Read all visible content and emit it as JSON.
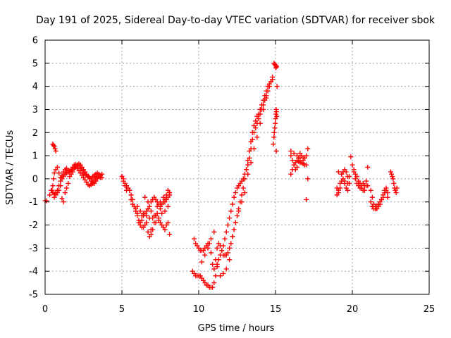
{
  "chart_data": {
    "type": "scatter",
    "title": "Day 191 of 2025, Sidereal Day-to-day VTEC variation (SDTVAR) for receiver sbok",
    "xlabel": "GPS time / hours",
    "ylabel": "SDTVAR / TECUs",
    "xlim": [
      0,
      25
    ],
    "ylim": [
      -5,
      6
    ],
    "xticks": [
      0,
      5,
      10,
      15,
      20,
      25
    ],
    "yticks": [
      -5,
      -4,
      -3,
      -2,
      -1,
      0,
      1,
      2,
      3,
      4,
      5,
      6
    ],
    "grid": true,
    "marker": "+",
    "color": "#ff0000",
    "series": [
      {
        "name": "sbok",
        "x": [
          0.0,
          0.1,
          0.3,
          0.4,
          0.5,
          0.55,
          0.6,
          0.7,
          0.8,
          0.9,
          1.0,
          1.1,
          1.2,
          1.3,
          1.4,
          1.5,
          1.6,
          1.7,
          1.8,
          1.9,
          2.0,
          2.1,
          2.2,
          2.3,
          2.4,
          2.5,
          2.6,
          2.7,
          2.8,
          2.9,
          3.0,
          3.1,
          3.2,
          3.3,
          3.4,
          3.5,
          3.6,
          3.7,
          0.5,
          0.55,
          0.6,
          0.65,
          0.7,
          0.45,
          0.5,
          0.6,
          0.7,
          0.8,
          0.9,
          1.0,
          1.1,
          1.2,
          1.3,
          1.4,
          1.5,
          1.6,
          1.7,
          1.8,
          1.9,
          2.0,
          2.1,
          2.2,
          2.3,
          2.4,
          2.5,
          2.6,
          2.7,
          2.8,
          2.9,
          3.0,
          3.1,
          3.2,
          3.3,
          3.4,
          3.5,
          3.6,
          3.7,
          1.0,
          0.9,
          0.8,
          0.7,
          0.6,
          1.1,
          1.2,
          1.3,
          1.4,
          1.5,
          1.6,
          1.7,
          1.8,
          1.9,
          2.0,
          2.1,
          2.2,
          2.3,
          2.4,
          2.5,
          2.6,
          2.7,
          2.8,
          2.9,
          3.0,
          3.1,
          3.2,
          3.3,
          3.4,
          3.5,
          3.6,
          5.0,
          5.1,
          5.2,
          5.3,
          5.4,
          5.5,
          5.6,
          5.7,
          5.8,
          5.9,
          6.0,
          6.1,
          6.2,
          6.3,
          6.4,
          6.5,
          6.6,
          6.7,
          6.8,
          6.9,
          7.0,
          7.1,
          7.2,
          7.3,
          7.4,
          7.5,
          7.6,
          7.7,
          7.8,
          7.9,
          8.0,
          8.1,
          5.0,
          5.1,
          5.2,
          5.3,
          5.4,
          5.5,
          5.6,
          5.7,
          5.8,
          5.9,
          6.0,
          6.1,
          6.2,
          6.3,
          6.4,
          6.5,
          6.6,
          6.7,
          6.8,
          6.9,
          7.0,
          7.1,
          7.2,
          7.3,
          7.4,
          7.5,
          7.6,
          7.7,
          7.8,
          7.9,
          8.0,
          8.1,
          6.0,
          6.2,
          6.4,
          6.6,
          6.8,
          7.0,
          7.2,
          7.4,
          7.6,
          7.8,
          8.0,
          6.5,
          6.7,
          6.9,
          7.1,
          7.3,
          7.5,
          7.7,
          7.9,
          8.1,
          6.3,
          6.6,
          6.9,
          7.2,
          7.5,
          7.8,
          8.0,
          8.1,
          9.6,
          9.7,
          9.8,
          9.9,
          10.0,
          10.1,
          10.2,
          10.3,
          10.4,
          10.5,
          10.6,
          10.7,
          10.8,
          10.9,
          11.0,
          11.1,
          11.2,
          11.3,
          11.4,
          11.5,
          11.6,
          11.7,
          11.8,
          11.9,
          12.0,
          12.1,
          12.2,
          12.3,
          12.4,
          12.5,
          12.6,
          12.7,
          12.8,
          12.9,
          13.0,
          13.1,
          13.2,
          13.3,
          13.4,
          13.5,
          13.6,
          13.7,
          13.8,
          13.9,
          14.0,
          14.1,
          14.2,
          14.3,
          14.4,
          14.5,
          14.6,
          14.7,
          14.8,
          9.7,
          9.8,
          9.9,
          10.0,
          10.1,
          10.2,
          10.3,
          10.4,
          10.5,
          10.6,
          10.7,
          10.8,
          10.9,
          11.0,
          11.1,
          11.2,
          11.3,
          11.4,
          11.5,
          11.6,
          11.7,
          11.8,
          11.9,
          12.0,
          12.1,
          12.2,
          12.3,
          12.4,
          12.5,
          12.6,
          12.7,
          12.8,
          12.9,
          13.0,
          13.1,
          13.2,
          13.3,
          13.4,
          13.5,
          13.6,
          13.7,
          13.8,
          13.9,
          14.0,
          14.1,
          14.2,
          14.3,
          14.4,
          14.5,
          14.6,
          14.7,
          14.8,
          10.2,
          10.4,
          10.6,
          10.8,
          11.0,
          11.2,
          11.4,
          11.6,
          11.8,
          12.0,
          12.2,
          12.4,
          12.6,
          12.8,
          13.0,
          13.2,
          13.4,
          13.6,
          13.8,
          14.0,
          14.2,
          14.4,
          14.6,
          14.9,
          14.95,
          15.0,
          15.02,
          15.04,
          15.06,
          14.85,
          14.9,
          14.92,
          14.95,
          14.98,
          15.0,
          15.02,
          15.04,
          15.06,
          15.08,
          15.1,
          15.05,
          16.0,
          16.1,
          16.2,
          16.3,
          16.4,
          16.5,
          16.6,
          16.7,
          16.8,
          16.9,
          17.0,
          17.1,
          16.0,
          16.1,
          16.2,
          16.3,
          16.4,
          16.5,
          16.6,
          16.7,
          16.8,
          16.9,
          17.0,
          17.1,
          16.0,
          16.2,
          16.4,
          16.6,
          16.8,
          17.0,
          19.0,
          19.1,
          19.2,
          19.3,
          19.4,
          19.5,
          19.6,
          19.7,
          19.8,
          19.0,
          19.1,
          19.2,
          19.3,
          19.4,
          19.5,
          19.6,
          19.7,
          19.8,
          19.1,
          19.3,
          19.5,
          19.7,
          19.9,
          20.0,
          20.1,
          20.2,
          20.3,
          20.4,
          20.5,
          20.6,
          20.7,
          20.8,
          20.9,
          21.0,
          20.1,
          20.2,
          20.3,
          20.4,
          20.5,
          20.6,
          20.7,
          20.8,
          20.9,
          21.0,
          21.2,
          21.3,
          21.4,
          21.5,
          21.6,
          21.7,
          21.8,
          21.9,
          22.0,
          22.1,
          22.2,
          22.3,
          21.2,
          21.3,
          21.4,
          21.5,
          21.6,
          21.7,
          21.8,
          21.9,
          22.0,
          22.1,
          22.2,
          22.3,
          22.5,
          22.55,
          22.6,
          22.65,
          22.7,
          22.75,
          22.8,
          22.85,
          22.9
        ],
        "y": [
          -0.95,
          -0.95,
          -0.7,
          -0.5,
          -0.3,
          0.0,
          0.25,
          0.4,
          0.5,
          0.25,
          0.05,
          0.15,
          0.3,
          0.4,
          0.45,
          0.35,
          0.3,
          0.4,
          0.5,
          0.6,
          0.62,
          0.6,
          0.55,
          0.45,
          0.35,
          0.25,
          0.2,
          0.15,
          0.1,
          0.05,
          0.0,
          0.1,
          0.15,
          0.2,
          0.25,
          0.2,
          0.15,
          0.2,
          1.5,
          1.45,
          1.4,
          1.3,
          1.2,
          -0.5,
          -0.6,
          -0.65,
          -0.6,
          -0.5,
          -0.3,
          -0.1,
          0.0,
          0.1,
          0.2,
          0.25,
          0.3,
          0.35,
          0.35,
          0.4,
          0.45,
          0.5,
          0.45,
          0.35,
          0.25,
          0.15,
          0.05,
          -0.05,
          -0.15,
          -0.25,
          -0.3,
          -0.25,
          -0.15,
          -0.05,
          0.05,
          0.1,
          0.1,
          0.05,
          0.05,
          -0.3,
          -0.5,
          -0.6,
          -0.7,
          -0.8,
          -0.85,
          -1.0,
          -0.6,
          -0.4,
          -0.2,
          0.1,
          0.2,
          0.3,
          0.5,
          0.55,
          0.6,
          0.65,
          0.6,
          0.5,
          0.4,
          0.3,
          0.2,
          0.1,
          0.0,
          -0.1,
          -0.2,
          -0.2,
          -0.1,
          0.0,
          0.1,
          0.15,
          0.1,
          -0.1,
          -0.3,
          -0.5,
          -0.4,
          -0.5,
          -0.9,
          -1.1,
          -1.2,
          -1.3,
          -1.5,
          -1.8,
          -1.9,
          -1.8,
          -1.6,
          -1.5,
          -1.4,
          -1.3,
          -1.2,
          -1.0,
          -0.9,
          -0.8,
          -0.9,
          -1.0,
          -1.1,
          -1.2,
          -1.1,
          -1.0,
          -0.9,
          -0.9,
          -0.8,
          -0.7,
          0.1,
          0.0,
          -0.2,
          -0.3,
          -0.4,
          -0.5,
          -0.7,
          -0.9,
          -1.2,
          -1.4,
          -1.6,
          -1.9,
          -2.0,
          -2.1,
          -2.1,
          -2.0,
          -1.9,
          -2.3,
          -2.5,
          -2.4,
          -2.2,
          -1.9,
          -1.6,
          -1.5,
          -1.7,
          -1.9,
          -2.0,
          -2.1,
          -2.2,
          -2.0,
          -1.9,
          -2.4,
          -1.2,
          -1.4,
          -1.5,
          -1.6,
          -1.7,
          -1.7,
          -1.6,
          -1.8,
          -1.5,
          -1.4,
          -1.2,
          -0.8,
          -1.0,
          -1.4,
          -1.6,
          -1.2,
          -1.0,
          -0.8,
          -0.7,
          -0.6,
          -1.6,
          -1.9,
          -2.2,
          -1.9,
          -1.3,
          -1.0,
          -0.5,
          -0.6,
          -4.0,
          -4.1,
          -4.2,
          -4.2,
          -4.2,
          -4.2,
          -4.3,
          -4.4,
          -4.5,
          -4.6,
          -4.6,
          -4.7,
          -4.7,
          -4.7,
          -4.5,
          -4.2,
          -3.8,
          -3.5,
          -3.3,
          -3.1,
          -2.9,
          -2.6,
          -2.3,
          -2.0,
          -1.7,
          -1.4,
          -1.1,
          -0.8,
          -0.6,
          -0.4,
          -0.3,
          -0.2,
          -0.1,
          0.0,
          0.2,
          0.4,
          0.6,
          0.9,
          1.3,
          1.7,
          2.0,
          2.2,
          2.4,
          2.6,
          2.8,
          3.0,
          3.2,
          3.4,
          3.6,
          3.8,
          4.0,
          4.2,
          4.4,
          -2.6,
          -2.8,
          -2.9,
          -3.0,
          -3.1,
          -3.1,
          -3.1,
          -3.0,
          -2.9,
          -2.8,
          -2.8,
          -3.2,
          -3.7,
          -3.9,
          -3.5,
          -3.0,
          -2.8,
          -2.9,
          -3.1,
          -3.3,
          -3.3,
          -3.3,
          -3.2,
          -3.0,
          -2.8,
          -2.5,
          -2.2,
          -1.9,
          -1.6,
          -1.3,
          -1.0,
          -0.7,
          -0.4,
          0.0,
          0.4,
          0.8,
          1.2,
          1.6,
          2.0,
          2.3,
          2.5,
          2.7,
          2.8,
          3.0,
          3.2,
          3.4,
          3.6,
          3.8,
          4.0,
          4.1,
          4.2,
          4.3,
          -3.6,
          -3.3,
          -3.0,
          -2.6,
          -2.3,
          -3.7,
          -4.2,
          -4.1,
          -3.9,
          -3.5,
          -2.5,
          -1.9,
          -1.4,
          -1.0,
          -0.6,
          0.2,
          0.7,
          1.3,
          1.8,
          2.4,
          3.0,
          3.5,
          4.0,
          5.0,
          4.95,
          4.9,
          4.8,
          4.9,
          4.85,
          1.5,
          1.8,
          2.0,
          2.2,
          2.4,
          2.6,
          2.8,
          3.0,
          2.9,
          2.7,
          4.0,
          1.2,
          1.0,
          0.8,
          0.6,
          0.4,
          0.5,
          0.9,
          1.1,
          1.0,
          0.8,
          0.9,
          1.0,
          0.0,
          0.2,
          0.4,
          0.6,
          0.7,
          0.8,
          0.75,
          0.7,
          0.7,
          0.65,
          0.6,
          0.6,
          1.3,
          1.2,
          1.1,
          1.0,
          0.9,
          0.9,
          -0.9,
          -0.7,
          -0.5,
          -0.2,
          0.2,
          0.3,
          0.4,
          0.3,
          0.1,
          -0.2,
          -0.4,
          -0.6,
          -0.4,
          -0.1,
          0.0,
          -0.2,
          -0.4,
          -0.5,
          0.1,
          0.3,
          0.2,
          -0.1,
          -0.2,
          0.95,
          0.6,
          0.3,
          0.0,
          -0.2,
          -0.3,
          -0.4,
          -0.3,
          -0.2,
          -0.3,
          -0.1,
          0.5,
          0.4,
          0.2,
          0.1,
          -0.1,
          -0.2,
          -0.4,
          -0.5,
          -0.5,
          -0.3,
          -0.3,
          -0.5,
          -0.8,
          -1.1,
          -1.2,
          -1.3,
          -1.2,
          -1.1,
          -0.9,
          -0.7,
          -0.5,
          -0.4,
          -0.8,
          -1.0,
          -1.2,
          -1.3,
          -1.3,
          -1.2,
          -1.1,
          -1.0,
          -0.9,
          -0.8,
          -0.6,
          -0.5,
          -0.6,
          0.3,
          0.2,
          0.1,
          0.0,
          -0.2,
          -0.4,
          -0.5,
          -0.6,
          -0.4
        ]
      }
    ]
  }
}
